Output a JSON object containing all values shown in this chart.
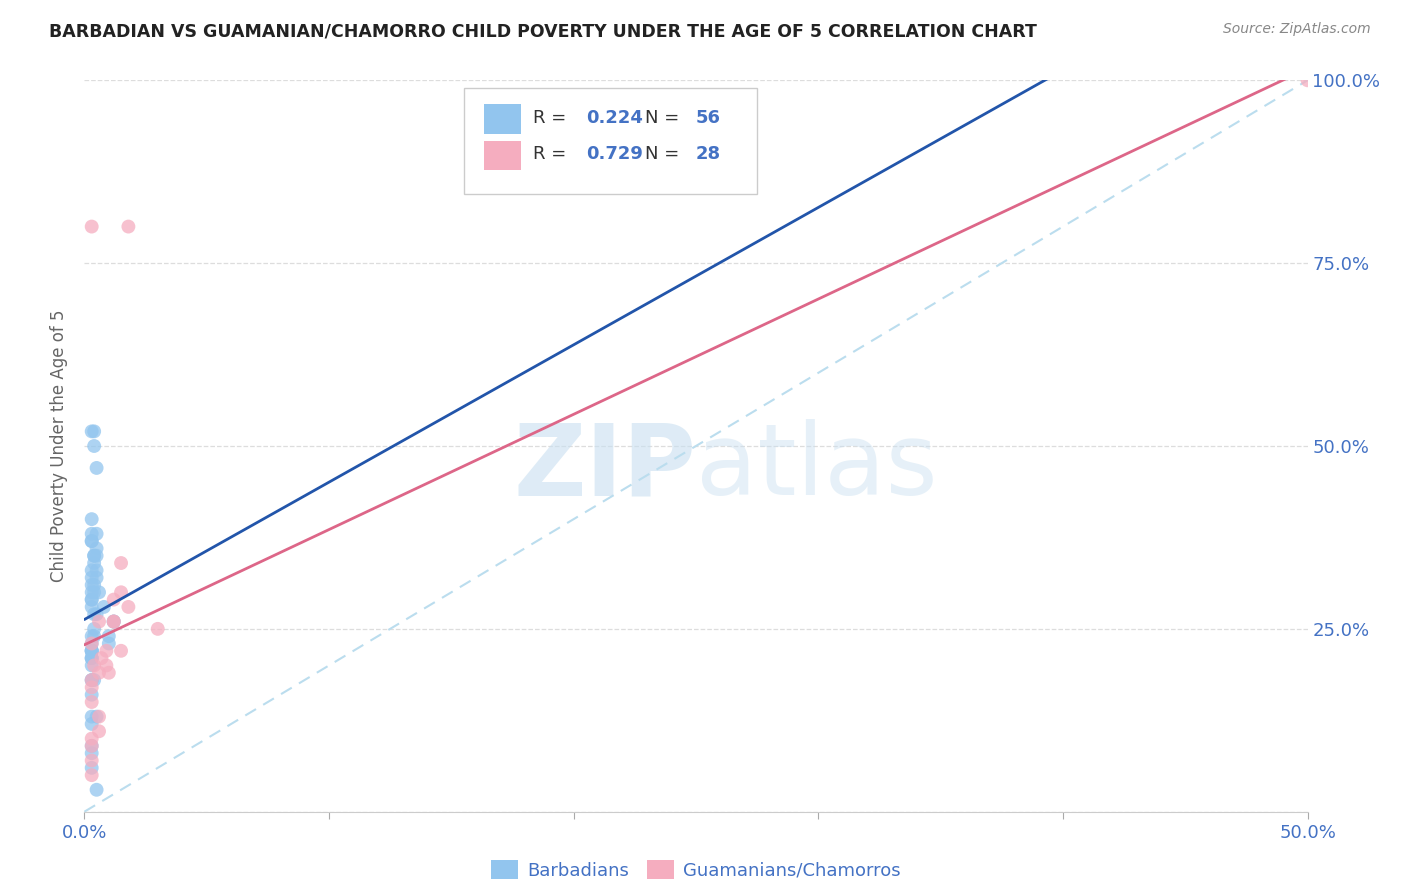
{
  "title": "BARBADIAN VS GUAMANIAN/CHAMORRO CHILD POVERTY UNDER THE AGE OF 5 CORRELATION CHART",
  "source": "Source: ZipAtlas.com",
  "ylabel": "Child Poverty Under the Age of 5",
  "xlim": [
    0.0,
    0.5
  ],
  "ylim": [
    0.0,
    1.0
  ],
  "xticks": [
    0.0,
    0.1,
    0.2,
    0.3,
    0.4,
    0.5
  ],
  "xticklabels_show": [
    "0.0%",
    "",
    "",
    "",
    "",
    "50.0%"
  ],
  "yticks": [
    0.0,
    0.25,
    0.5,
    0.75,
    1.0
  ],
  "yticklabels_right": [
    "",
    "25.0%",
    "50.0%",
    "75.0%",
    "100.0%"
  ],
  "blue_color": "#92C5EE",
  "pink_color": "#F5ADBF",
  "blue_line_color": "#2255AA",
  "pink_line_color": "#DD6688",
  "ref_line_color": "#BBDDEE",
  "legend_R1": "0.224",
  "legend_N1": "56",
  "legend_R2": "0.729",
  "legend_N2": "28",
  "watermark_zip": "ZIP",
  "watermark_atlas": "atlas",
  "barbadian_x": [
    0.005,
    0.005,
    0.008,
    0.003,
    0.004,
    0.006,
    0.003,
    0.004,
    0.003,
    0.003,
    0.004,
    0.003,
    0.005,
    0.004,
    0.003,
    0.004,
    0.005,
    0.004,
    0.003,
    0.003,
    0.004,
    0.003,
    0.005,
    0.003,
    0.004,
    0.003,
    0.005,
    0.004,
    0.003,
    0.003,
    0.003,
    0.003,
    0.003,
    0.004,
    0.005,
    0.003,
    0.003,
    0.003,
    0.003,
    0.005,
    0.003,
    0.003,
    0.005,
    0.01,
    0.012,
    0.003,
    0.003,
    0.003,
    0.003,
    0.003,
    0.01,
    0.003,
    0.004,
    0.003,
    0.003,
    0.012
  ],
  "barbadian_y": [
    0.32,
    0.33,
    0.28,
    0.37,
    0.35,
    0.3,
    0.38,
    0.31,
    0.4,
    0.29,
    0.34,
    0.32,
    0.36,
    0.27,
    0.33,
    0.3,
    0.38,
    0.35,
    0.28,
    0.29,
    0.24,
    0.31,
    0.35,
    0.37,
    0.52,
    0.52,
    0.47,
    0.5,
    0.22,
    0.3,
    0.18,
    0.16,
    0.13,
    0.18,
    0.13,
    0.08,
    0.06,
    0.09,
    0.12,
    0.03,
    0.21,
    0.23,
    0.27,
    0.24,
    0.26,
    0.21,
    0.24,
    0.22,
    0.2,
    0.22,
    0.23,
    0.18,
    0.25,
    0.22,
    0.21,
    0.26
  ],
  "guamanian_x": [
    0.003,
    0.004,
    0.006,
    0.007,
    0.012,
    0.015,
    0.018,
    0.009,
    0.009,
    0.012,
    0.006,
    0.01,
    0.012,
    0.015,
    0.03,
    0.003,
    0.003,
    0.003,
    0.006,
    0.003,
    0.006,
    0.003,
    0.015,
    0.003,
    0.018,
    0.003,
    0.5,
    0.003
  ],
  "guamanian_y": [
    0.23,
    0.2,
    0.26,
    0.21,
    0.26,
    0.34,
    0.28,
    0.22,
    0.2,
    0.29,
    0.19,
    0.19,
    0.26,
    0.22,
    0.25,
    0.17,
    0.15,
    0.18,
    0.13,
    0.1,
    0.11,
    0.09,
    0.3,
    0.07,
    0.8,
    0.8,
    1.0,
    0.05
  ]
}
